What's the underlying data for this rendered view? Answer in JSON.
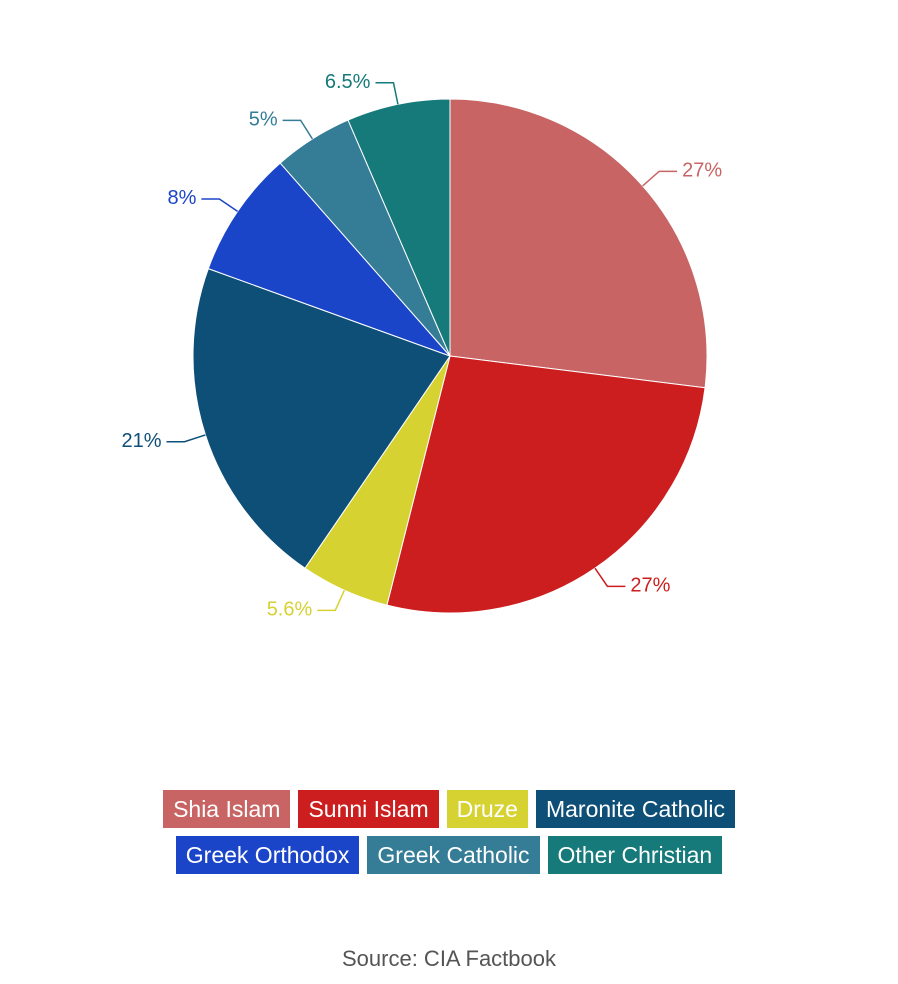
{
  "chart_data": {
    "type": "pie",
    "categories": [
      "Shia Islam",
      "Sunni Islam",
      "Druze",
      "Maronite Catholic",
      "Greek Orthodox",
      "Greek Catholic",
      "Other Christian"
    ],
    "values": [
      27,
      27,
      5.6,
      21,
      8,
      5,
      6.5
    ],
    "value_labels": [
      "27%",
      "27%",
      "5.6%",
      "21%",
      "8%",
      "5%",
      "6.5%"
    ],
    "colors": [
      "#c86464",
      "#cc1e1e",
      "#d6d232",
      "#0e4f78",
      "#1b45c8",
      "#357d97",
      "#167a7a"
    ],
    "source": "Source: CIA Factbook"
  }
}
